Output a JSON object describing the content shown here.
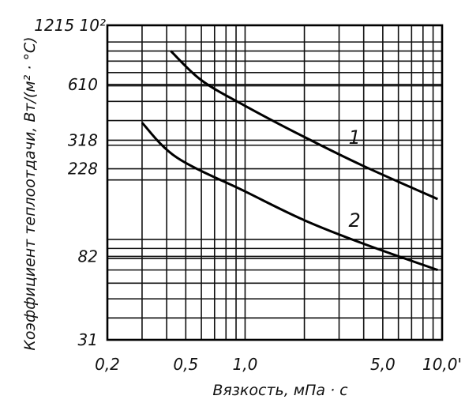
{
  "chart_data": {
    "type": "line",
    "xlabel": "Вязкость, мПа · с",
    "ylabel": "Коэффициент теплоотдачи, Вт/(м² · °С)",
    "xscale": "log",
    "yscale": "log",
    "xlim": [
      0.2,
      10.0
    ],
    "ylim": [
      31,
      1215
    ],
    "grid": true,
    "x_ticks": [
      {
        "value": 0.2,
        "label": "0,2"
      },
      {
        "value": 0.5,
        "label": "0,5"
      },
      {
        "value": 1.0,
        "label": "1,0"
      },
      {
        "value": 5.0,
        "label": "5,0"
      },
      {
        "value": 10.0,
        "label": "10,0'"
      }
    ],
    "y_ticks": [
      {
        "value": 31,
        "label": "31"
      },
      {
        "value": 82,
        "label": "82"
      },
      {
        "value": 228,
        "label": "228"
      },
      {
        "value": 318,
        "label": "318"
      },
      {
        "value": 610,
        "label": "610"
      },
      {
        "value": 1215,
        "label": "1215 10²"
      }
    ],
    "series": [
      {
        "name": "1",
        "x": [
          0.42,
          0.6,
          1.0,
          2.0,
          4.0,
          9.5
        ],
        "y": [
          900,
          640,
          475,
          330,
          235,
          160
        ]
      },
      {
        "name": "2",
        "x": [
          0.3,
          0.45,
          1.0,
          2.0,
          4.0,
          9.5
        ],
        "y": [
          390,
          260,
          175,
          125,
          95,
          70
        ]
      }
    ]
  }
}
